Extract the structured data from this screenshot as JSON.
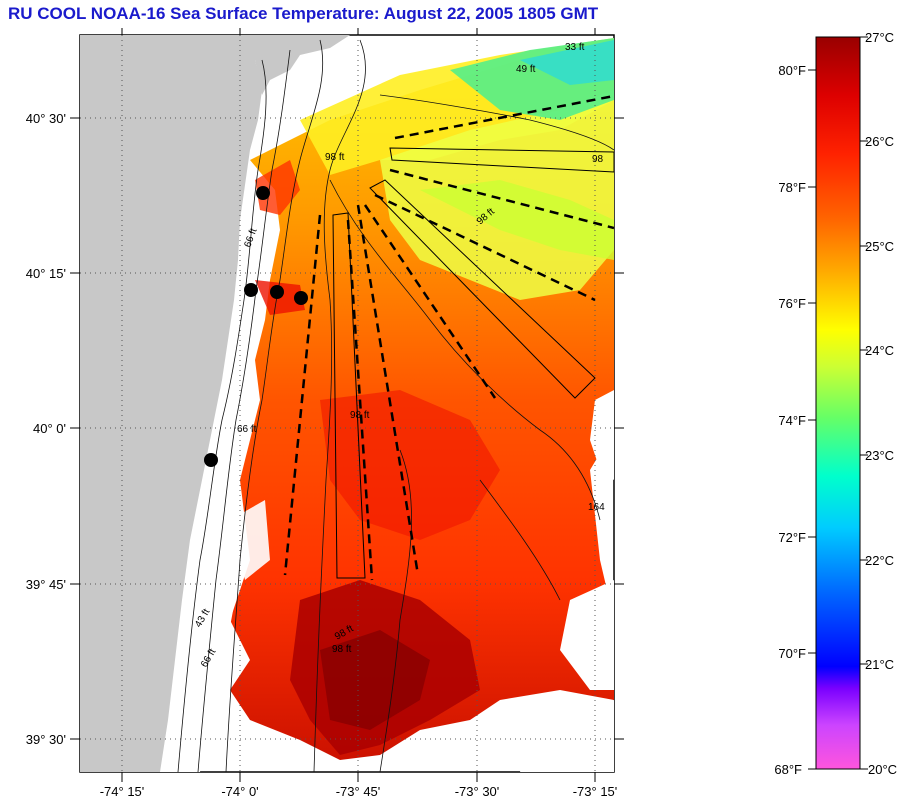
{
  "title": "RU COOL  NOAA-16  Sea Surface Temperature:  August 22, 2005 1805 GMT",
  "map": {
    "lat_ticks": [
      {
        "label": "40° 30'"
      },
      {
        "label": "40° 15'"
      },
      {
        "label": "40° 0'"
      },
      {
        "label": "39° 45'"
      },
      {
        "label": "39° 30'"
      }
    ],
    "lon_ticks": [
      {
        "label": "-74° 15'"
      },
      {
        "label": "-74° 0'"
      },
      {
        "label": "-73° 45'"
      },
      {
        "label": "-73° 30'"
      },
      {
        "label": "-73° 15'"
      }
    ],
    "contour_labels": [
      "33 ft",
      "49 ft",
      "98 ft",
      "98",
      "98 ft",
      "66 ft",
      "98 ft",
      "66 ft",
      "98 ft",
      "164",
      "43 ft",
      "66 ft",
      "98 ft"
    ],
    "colors": {
      "land": "#c8c8c8",
      "water_missing": "#ffffff",
      "markers": "#000000"
    }
  },
  "colorbar": {
    "fahrenheit_labels": [
      "80°F",
      "78°F",
      "76°F",
      "74°F",
      "72°F",
      "70°F",
      "68°F"
    ],
    "celsius_labels": [
      "27°C",
      "26°C",
      "25°C",
      "24°C",
      "23°C",
      "22°C",
      "21°C",
      "20°C"
    ],
    "colors": [
      "#ff55dd",
      "#cc44ff",
      "#7a00ff",
      "#0000ff",
      "#0066ff",
      "#00ccff",
      "#00ffcc",
      "#66ff66",
      "#ccff33",
      "#ffff00",
      "#ffaa00",
      "#ff6600",
      "#ff2200",
      "#dd0000",
      "#990000"
    ]
  }
}
